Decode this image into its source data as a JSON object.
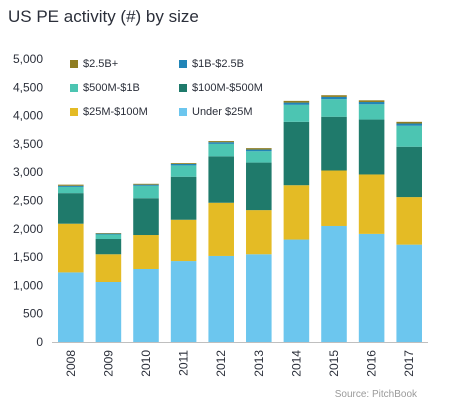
{
  "title": "US PE activity (#) by size",
  "source": "Source: PitchBook",
  "chart_data": {
    "type": "bar",
    "stacked": true,
    "categories": [
      "2008",
      "2009",
      "2010",
      "2011",
      "2012",
      "2013",
      "2014",
      "2015",
      "2016",
      "2017"
    ],
    "ylim": [
      0,
      5000
    ],
    "yticks": [
      0,
      500,
      1000,
      1500,
      2000,
      2500,
      3000,
      3500,
      4000,
      4500,
      5000
    ],
    "ytick_labels": [
      "0",
      "500",
      "1,000",
      "1,500",
      "2,000",
      "2,500",
      "3,000",
      "3,500",
      "4,000",
      "4,500",
      "5,000"
    ],
    "grid": false,
    "legend_position": "top-left",
    "series": [
      {
        "name": "Under $25M",
        "color": "#6cc6ee",
        "values": [
          1230,
          1060,
          1290,
          1430,
          1520,
          1550,
          1810,
          2050,
          1910,
          1720
        ]
      },
      {
        "name": "$25M-$100M",
        "color": "#e4bb25",
        "values": [
          860,
          490,
          600,
          730,
          940,
          780,
          960,
          980,
          1050,
          840
        ]
      },
      {
        "name": "$100M-$500M",
        "color": "#1f7a6b",
        "values": [
          540,
          270,
          650,
          760,
          820,
          840,
          1120,
          950,
          970,
          890
        ]
      },
      {
        "name": "$500M-$1B",
        "color": "#4cc5b2",
        "values": [
          110,
          80,
          220,
          200,
          220,
          200,
          300,
          310,
          270,
          370
        ]
      },
      {
        "name": "$1B-$2.5B",
        "color": "#2185b7",
        "values": [
          20,
          15,
          20,
          25,
          30,
          30,
          40,
          40,
          40,
          40
        ]
      },
      {
        "name": "$2.5B+",
        "color": "#8f7d22",
        "values": [
          20,
          10,
          15,
          15,
          20,
          25,
          30,
          30,
          30,
          30
        ]
      }
    ],
    "legend": [
      {
        "name": "$2.5B+",
        "color": "#8f7d22"
      },
      {
        "name": "$1B-$2.5B",
        "color": "#2185b7"
      },
      {
        "name": "$500M-$1B",
        "color": "#4cc5b2"
      },
      {
        "name": "$100M-$500M",
        "color": "#1f7a6b"
      },
      {
        "name": "$25M-$100M",
        "color": "#e4bb25"
      },
      {
        "name": "Under $25M",
        "color": "#6cc6ee"
      }
    ]
  }
}
